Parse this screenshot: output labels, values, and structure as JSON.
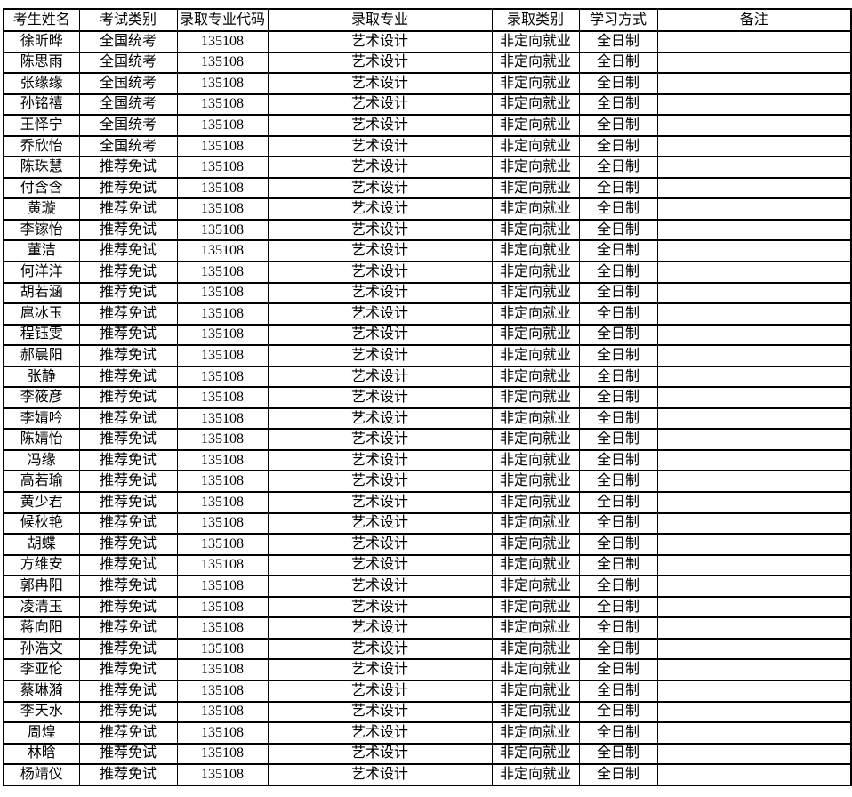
{
  "table": {
    "headers": [
      "考生姓名",
      "考试类别",
      "录取专业代码",
      "录取专业",
      "录取类别",
      "学习方式",
      "备注"
    ],
    "rows": [
      [
        "徐昕晔",
        "全国统考",
        "135108",
        "艺术设计",
        "非定向就业",
        "全日制",
        ""
      ],
      [
        "陈思雨",
        "全国统考",
        "135108",
        "艺术设计",
        "非定向就业",
        "全日制",
        ""
      ],
      [
        "张缘缘",
        "全国统考",
        "135108",
        "艺术设计",
        "非定向就业",
        "全日制",
        ""
      ],
      [
        "孙铭禧",
        "全国统考",
        "135108",
        "艺术设计",
        "非定向就业",
        "全日制",
        ""
      ],
      [
        "王怿宁",
        "全国统考",
        "135108",
        "艺术设计",
        "非定向就业",
        "全日制",
        ""
      ],
      [
        "乔欣怡",
        "全国统考",
        "135108",
        "艺术设计",
        "非定向就业",
        "全日制",
        ""
      ],
      [
        "陈珠慧",
        "推荐免试",
        "135108",
        "艺术设计",
        "非定向就业",
        "全日制",
        ""
      ],
      [
        "付含含",
        "推荐免试",
        "135108",
        "艺术设计",
        "非定向就业",
        "全日制",
        ""
      ],
      [
        "黄璇",
        "推荐免试",
        "135108",
        "艺术设计",
        "非定向就业",
        "全日制",
        ""
      ],
      [
        "李镓怡",
        "推荐免试",
        "135108",
        "艺术设计",
        "非定向就业",
        "全日制",
        ""
      ],
      [
        "董洁",
        "推荐免试",
        "135108",
        "艺术设计",
        "非定向就业",
        "全日制",
        ""
      ],
      [
        "何洋洋",
        "推荐免试",
        "135108",
        "艺术设计",
        "非定向就业",
        "全日制",
        ""
      ],
      [
        "胡若涵",
        "推荐免试",
        "135108",
        "艺术设计",
        "非定向就业",
        "全日制",
        ""
      ],
      [
        "扈冰玉",
        "推荐免试",
        "135108",
        "艺术设计",
        "非定向就业",
        "全日制",
        ""
      ],
      [
        "程钰雯",
        "推荐免试",
        "135108",
        "艺术设计",
        "非定向就业",
        "全日制",
        ""
      ],
      [
        "郝晨阳",
        "推荐免试",
        "135108",
        "艺术设计",
        "非定向就业",
        "全日制",
        ""
      ],
      [
        "张静",
        "推荐免试",
        "135108",
        "艺术设计",
        "非定向就业",
        "全日制",
        ""
      ],
      [
        "李筱彦",
        "推荐免试",
        "135108",
        "艺术设计",
        "非定向就业",
        "全日制",
        ""
      ],
      [
        "李婧吟",
        "推荐免试",
        "135108",
        "艺术设计",
        "非定向就业",
        "全日制",
        ""
      ],
      [
        "陈婧怡",
        "推荐免试",
        "135108",
        "艺术设计",
        "非定向就业",
        "全日制",
        ""
      ],
      [
        "冯缘",
        "推荐免试",
        "135108",
        "艺术设计",
        "非定向就业",
        "全日制",
        ""
      ],
      [
        "高若瑜",
        "推荐免试",
        "135108",
        "艺术设计",
        "非定向就业",
        "全日制",
        ""
      ],
      [
        "黄少君",
        "推荐免试",
        "135108",
        "艺术设计",
        "非定向就业",
        "全日制",
        ""
      ],
      [
        "候秋艳",
        "推荐免试",
        "135108",
        "艺术设计",
        "非定向就业",
        "全日制",
        ""
      ],
      [
        "胡蝶",
        "推荐免试",
        "135108",
        "艺术设计",
        "非定向就业",
        "全日制",
        ""
      ],
      [
        "方维安",
        "推荐免试",
        "135108",
        "艺术设计",
        "非定向就业",
        "全日制",
        ""
      ],
      [
        "郭冉阳",
        "推荐免试",
        "135108",
        "艺术设计",
        "非定向就业",
        "全日制",
        ""
      ],
      [
        "凌清玉",
        "推荐免试",
        "135108",
        "艺术设计",
        "非定向就业",
        "全日制",
        ""
      ],
      [
        "蒋向阳",
        "推荐免试",
        "135108",
        "艺术设计",
        "非定向就业",
        "全日制",
        ""
      ],
      [
        "孙浩文",
        "推荐免试",
        "135108",
        "艺术设计",
        "非定向就业",
        "全日制",
        ""
      ],
      [
        "李亚伦",
        "推荐免试",
        "135108",
        "艺术设计",
        "非定向就业",
        "全日制",
        ""
      ],
      [
        "蔡琳漪",
        "推荐免试",
        "135108",
        "艺术设计",
        "非定向就业",
        "全日制",
        ""
      ],
      [
        "李天水",
        "推荐免试",
        "135108",
        "艺术设计",
        "非定向就业",
        "全日制",
        ""
      ],
      [
        "周煌",
        "推荐免试",
        "135108",
        "艺术设计",
        "非定向就业",
        "全日制",
        ""
      ],
      [
        "林晗",
        "推荐免试",
        "135108",
        "艺术设计",
        "非定向就业",
        "全日制",
        ""
      ],
      [
        "杨靖仪",
        "推荐免试",
        "135108",
        "艺术设计",
        "非定向就业",
        "全日制",
        ""
      ]
    ]
  }
}
